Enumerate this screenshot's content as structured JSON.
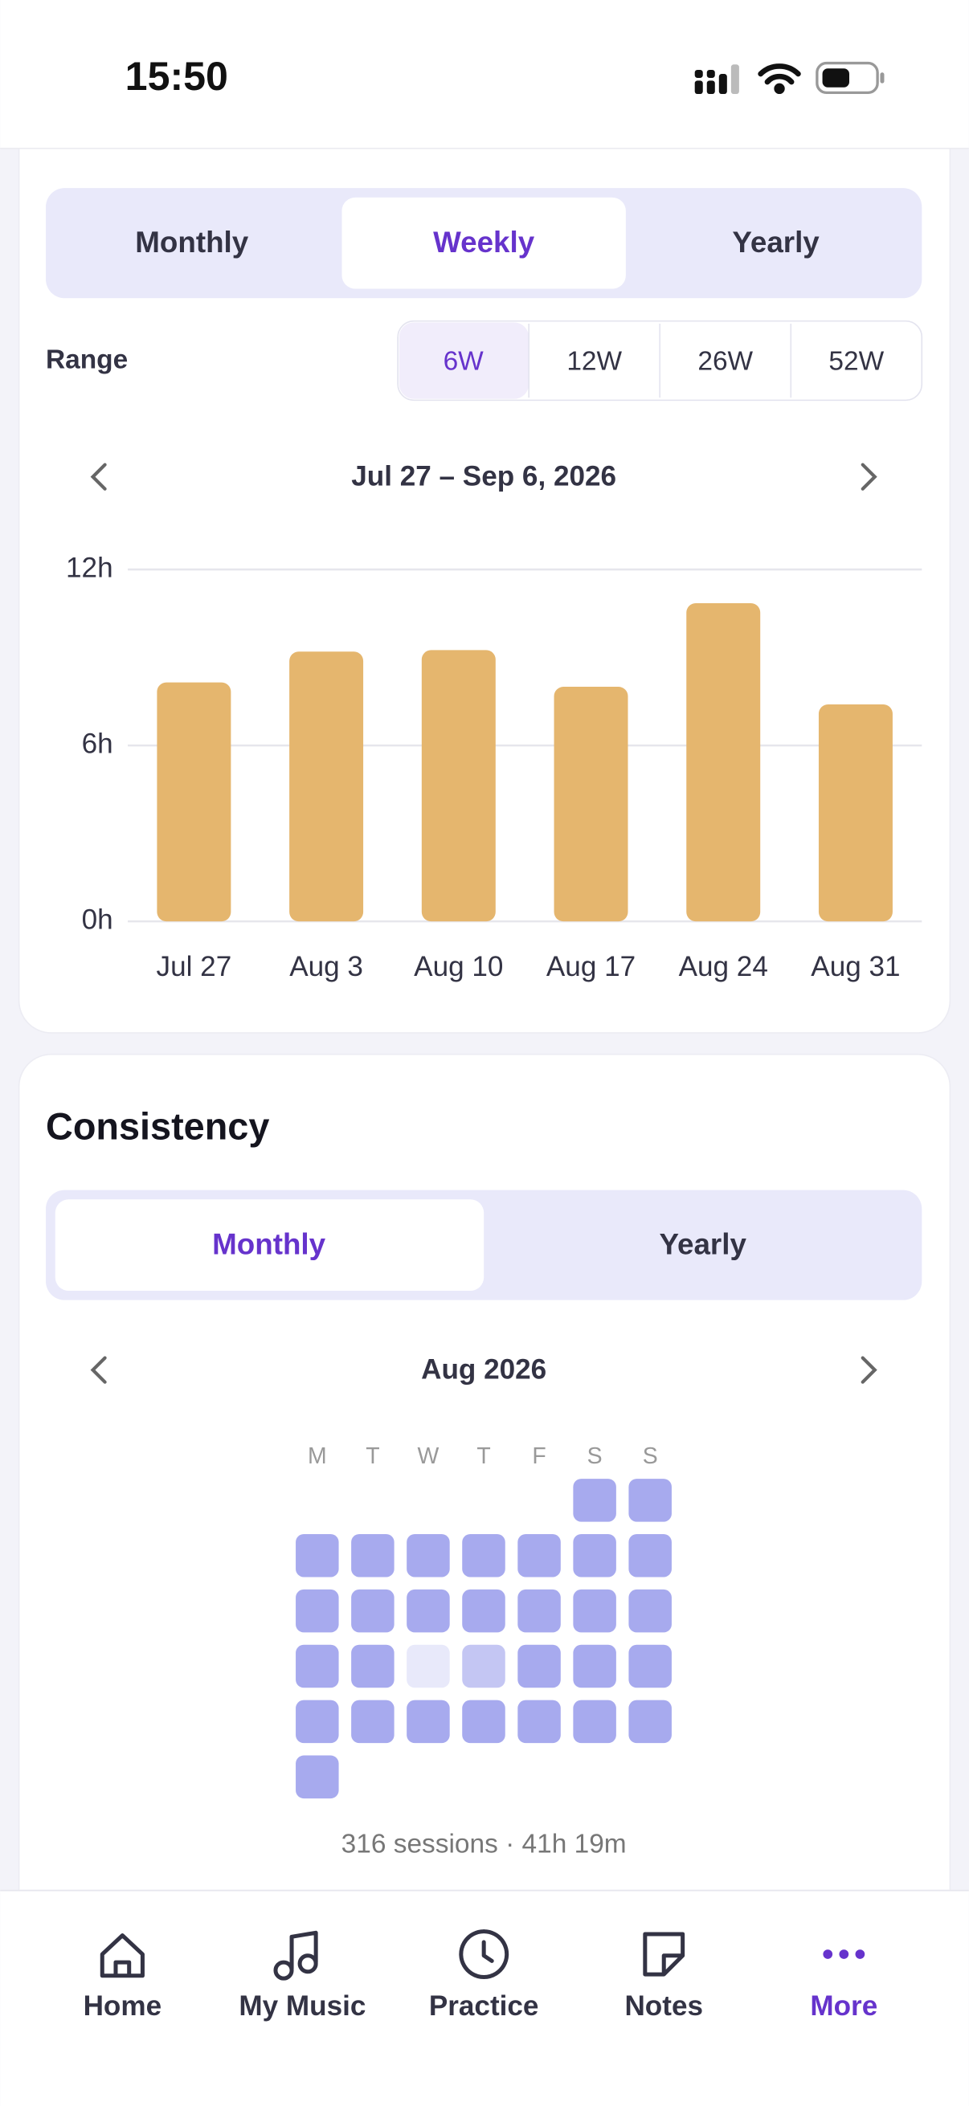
{
  "status_bar": {
    "time": "15:50"
  },
  "period_tabs": {
    "items": [
      "Monthly",
      "Weekly",
      "Yearly"
    ],
    "selected": 1
  },
  "range": {
    "label": "Range",
    "options": [
      "6W",
      "12W",
      "26W",
      "52W"
    ],
    "selected": 0
  },
  "chart_nav": {
    "label": "Jul 27 – Sep 6, 2026"
  },
  "chart_data": {
    "type": "bar",
    "categories": [
      "Jul 27",
      "Aug 3",
      "Aug 10",
      "Aug 17",
      "Aug 24",
      "Aug 31"
    ],
    "values": [
      8.15,
      9.2,
      9.25,
      8.0,
      10.85,
      7.4
    ],
    "color": "#e5b66e",
    "ylim": [
      0,
      12
    ],
    "yticks": [
      {
        "value": 0,
        "label": "0h"
      },
      {
        "value": 6,
        "label": "6h"
      },
      {
        "value": 12,
        "label": "12h"
      }
    ],
    "grid": true
  },
  "consistency": {
    "title": "Consistency",
    "tabs": [
      "Monthly",
      "Yearly"
    ],
    "selected": 0,
    "month": "Aug 2026",
    "weekdays": [
      "M",
      "T",
      "W",
      "T",
      "F",
      "S",
      "S"
    ],
    "first_weekday": 5,
    "days": [
      2,
      2,
      2,
      2,
      2,
      2,
      2,
      2,
      2,
      2,
      2,
      2,
      2,
      2,
      2,
      2,
      2,
      2,
      0,
      1,
      2,
      2,
      2,
      2,
      2,
      2,
      2,
      2,
      2,
      2,
      2
    ],
    "level_colors": [
      "#e8e9fa",
      "#c4c6f3",
      "#a7aaee"
    ],
    "summary": "316 sessions · 41h 19m"
  },
  "nav": {
    "items": [
      "Home",
      "My Music",
      "Practice",
      "Notes",
      "More"
    ],
    "selected": 4
  }
}
